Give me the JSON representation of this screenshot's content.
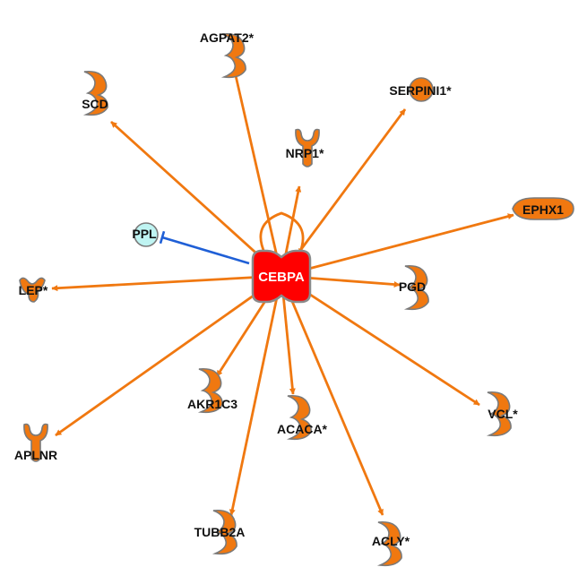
{
  "colors": {
    "activation": "#f07810",
    "inhibition": "#1f5fd6",
    "gene_fill": "#f07810",
    "gene_stroke": "#7a7a7a",
    "hub_fill": "#ff0000",
    "ppl_fill": "#bff4f2"
  },
  "hub": {
    "label": "CEBPA"
  },
  "nodes": [
    {
      "id": "agpat2",
      "label": "AGPAT2*",
      "shape": "enzyme"
    },
    {
      "id": "scd",
      "label": "SCD",
      "shape": "enzyme"
    },
    {
      "id": "serpini1",
      "label": "SERPINI1*",
      "shape": "circle"
    },
    {
      "id": "nrp1",
      "label": "NRP1*",
      "shape": "receptor"
    },
    {
      "id": "ephx1",
      "label": "EPHX1",
      "shape": "drop"
    },
    {
      "id": "ppl",
      "label": "PPL",
      "shape": "circle"
    },
    {
      "id": "lep",
      "label": "LEP*",
      "shape": "cytokine"
    },
    {
      "id": "pgd",
      "label": "PGD",
      "shape": "enzyme"
    },
    {
      "id": "akr1c3",
      "label": "AKR1C3",
      "shape": "enzyme"
    },
    {
      "id": "acaca",
      "label": "ACACA*",
      "shape": "enzyme"
    },
    {
      "id": "vcl",
      "label": "VCL*",
      "shape": "enzyme"
    },
    {
      "id": "aplnr",
      "label": "APLNR",
      "shape": "receptor"
    },
    {
      "id": "tubb2a",
      "label": "TUBB2A",
      "shape": "enzyme"
    },
    {
      "id": "acly",
      "label": "ACLY*",
      "shape": "enzyme"
    }
  ],
  "edges": [
    {
      "target": "agpat2",
      "type": "activation"
    },
    {
      "target": "scd",
      "type": "activation"
    },
    {
      "target": "serpini1",
      "type": "activation"
    },
    {
      "target": "nrp1",
      "type": "activation"
    },
    {
      "target": "ephx1",
      "type": "activation"
    },
    {
      "target": "ppl",
      "type": "inhibition"
    },
    {
      "target": "lep",
      "type": "activation"
    },
    {
      "target": "pgd",
      "type": "activation"
    },
    {
      "target": "akr1c3",
      "type": "activation"
    },
    {
      "target": "acaca",
      "type": "activation"
    },
    {
      "target": "vcl",
      "type": "activation"
    },
    {
      "target": "aplnr",
      "type": "activation"
    },
    {
      "target": "tubb2a",
      "type": "activation"
    },
    {
      "target": "acly",
      "type": "activation"
    },
    {
      "target": "hub",
      "type": "self-activation"
    }
  ]
}
